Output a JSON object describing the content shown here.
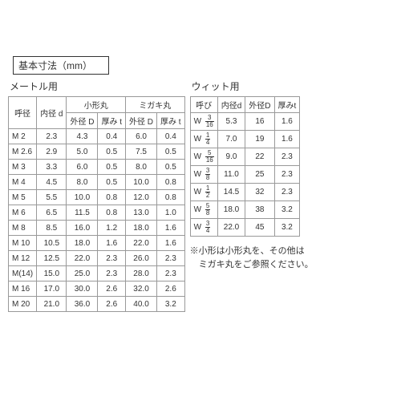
{
  "unit_label": "基本寸法（mm）",
  "metric": {
    "title": "メートル用",
    "headers": {
      "nominal": "呼径",
      "inner": "内径 d",
      "small_group": "小形丸",
      "polished_group": "ミガキ丸",
      "outer": "外径 D",
      "thick": "厚み t"
    },
    "rows": [
      {
        "n": "M 2",
        "d": "2.3",
        "sD": "4.3",
        "st": "0.4",
        "mD": "6.0",
        "mt": "0.4"
      },
      {
        "n": "M 2.6",
        "d": "2.9",
        "sD": "5.0",
        "st": "0.5",
        "mD": "7.5",
        "mt": "0.5"
      },
      {
        "n": "M 3",
        "d": "3.3",
        "sD": "6.0",
        "st": "0.5",
        "mD": "8.0",
        "mt": "0.5"
      },
      {
        "n": "M 4",
        "d": "4.5",
        "sD": "8.0",
        "st": "0.5",
        "mD": "10.0",
        "mt": "0.8"
      },
      {
        "n": "M 5",
        "d": "5.5",
        "sD": "10.0",
        "st": "0.8",
        "mD": "12.0",
        "mt": "0.8"
      },
      {
        "n": "M 6",
        "d": "6.5",
        "sD": "11.5",
        "st": "0.8",
        "mD": "13.0",
        "mt": "1.0"
      },
      {
        "n": "M 8",
        "d": "8.5",
        "sD": "16.0",
        "st": "1.2",
        "mD": "18.0",
        "mt": "1.6"
      },
      {
        "n": "M 10",
        "d": "10.5",
        "sD": "18.0",
        "st": "1.6",
        "mD": "22.0",
        "mt": "1.6"
      },
      {
        "n": "M 12",
        "d": "12.5",
        "sD": "22.0",
        "st": "2.3",
        "mD": "26.0",
        "mt": "2.3"
      },
      {
        "n": "M(14)",
        "d": "15.0",
        "sD": "25.0",
        "st": "2.3",
        "mD": "28.0",
        "mt": "2.3"
      },
      {
        "n": "M 16",
        "d": "17.0",
        "sD": "30.0",
        "st": "2.6",
        "mD": "32.0",
        "mt": "2.6"
      },
      {
        "n": "M 20",
        "d": "21.0",
        "sD": "36.0",
        "st": "2.6",
        "mD": "40.0",
        "mt": "3.2"
      }
    ]
  },
  "whit": {
    "title": "ウィット用",
    "headers": {
      "nominal": "呼び",
      "inner": "内径d",
      "outer": "外径D",
      "thick": "厚みt"
    },
    "rows": [
      {
        "n": "W",
        "ft": "3",
        "fb": "16",
        "d": "5.3",
        "D": "16",
        "t": "1.6"
      },
      {
        "n": "W",
        "ft": "1",
        "fb": "4",
        "d": "7.0",
        "D": "19",
        "t": "1.6"
      },
      {
        "n": "W",
        "ft": "5",
        "fb": "16",
        "d": "9.0",
        "D": "22",
        "t": "2.3"
      },
      {
        "n": "W",
        "ft": "3",
        "fb": "8",
        "d": "11.0",
        "D": "25",
        "t": "2.3"
      },
      {
        "n": "W",
        "ft": "1",
        "fb": "2",
        "d": "14.5",
        "D": "32",
        "t": "2.3"
      },
      {
        "n": "W",
        "ft": "5",
        "fb": "8",
        "d": "18.0",
        "D": "38",
        "t": "3.2"
      },
      {
        "n": "W",
        "ft": "3",
        "fb": "4",
        "d": "22.0",
        "D": "45",
        "t": "3.2"
      }
    ]
  },
  "note": {
    "line1": "※小形は小形丸を、その他は",
    "line2": "　ミガキ丸をご参照ください。"
  }
}
